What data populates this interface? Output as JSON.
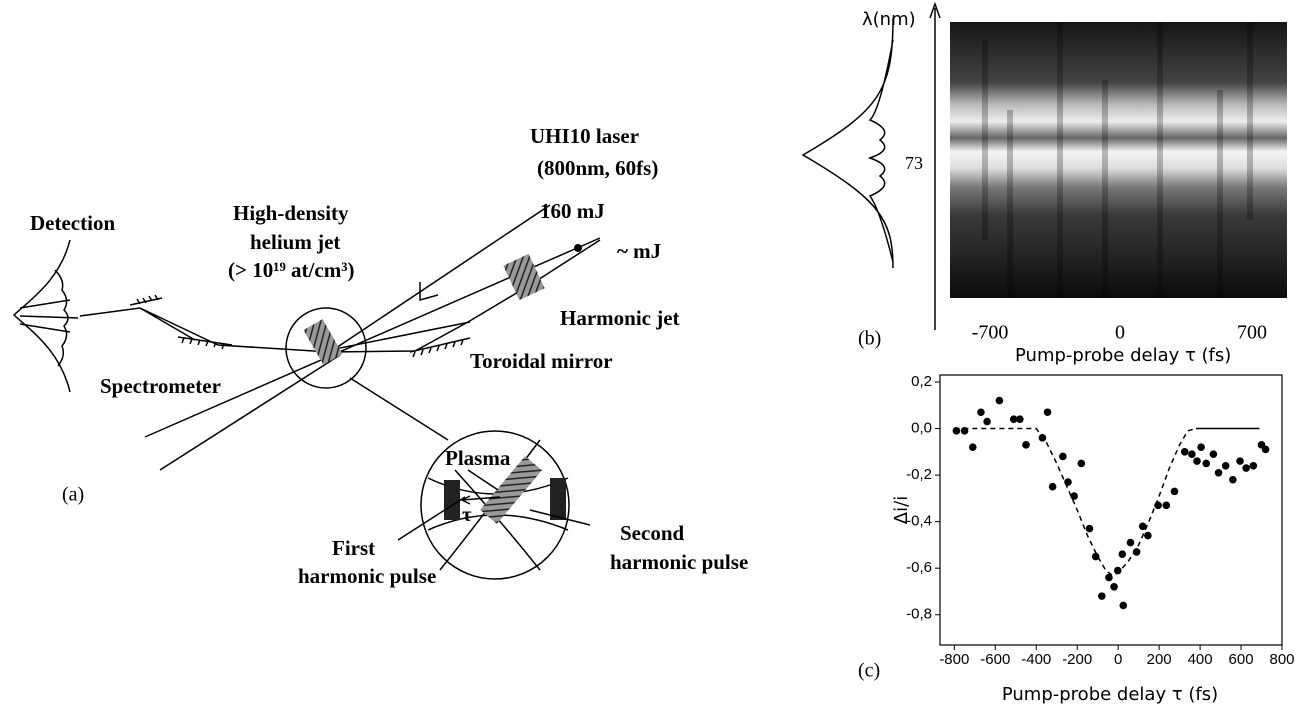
{
  "panel_a": {
    "label": "(a)",
    "laser": "UHI10 laser",
    "laser_params": "(800nm, 60fs)",
    "pump_energy": "160 mJ",
    "probe_energy": "~ mJ",
    "detection": "Detection",
    "jet_line1": "High-density",
    "jet_line2": "helium jet",
    "jet_line3": "(> 10¹⁹ at/cm³)",
    "harmonic_jet": "Harmonic jet",
    "toroidal_mirror": "Toroidal mirror",
    "spectrometer": "Spectrometer",
    "plasma": "Plasma",
    "tau": "τ",
    "first_line1": "First",
    "first_line2": "harmonic pulse",
    "second_line1": "Second",
    "second_line2": "harmonic pulse"
  },
  "panel_b": {
    "label": "(b)",
    "y_axis_label": "λ(nm)",
    "y_tick": "73",
    "x_ticks": [
      "-700",
      "0",
      "700"
    ],
    "x_axis_label": "Pump-probe delay τ (fs)"
  },
  "chart_data": {
    "type": "scatter",
    "label": "(c)",
    "x_label": "Pump-probe delay τ (fs)",
    "y_label": "Δi/i",
    "color": "#000000",
    "x": [
      -790,
      -750,
      -710,
      -670,
      -640,
      -580,
      -510,
      -480,
      -450,
      -370,
      -345,
      -320,
      -270,
      -245,
      -215,
      -180,
      -140,
      -110,
      -80,
      -45,
      -20,
      -2,
      20,
      25,
      60,
      90,
      120,
      145,
      195,
      235,
      275,
      325,
      360,
      385,
      405,
      430,
      465,
      490,
      525,
      560,
      595,
      625,
      660,
      700,
      720
    ],
    "values": [
      -0.01,
      -0.01,
      -0.08,
      0.07,
      0.03,
      0.12,
      0.04,
      0.04,
      -0.07,
      -0.04,
      0.07,
      -0.25,
      -0.12,
      -0.23,
      -0.29,
      -0.15,
      -0.43,
      -0.55,
      -0.72,
      -0.64,
      -0.68,
      -0.61,
      -0.54,
      -0.76,
      -0.49,
      -0.53,
      -0.42,
      -0.46,
      -0.33,
      -0.33,
      -0.27,
      -0.1,
      -0.11,
      -0.14,
      -0.08,
      -0.15,
      -0.11,
      -0.19,
      -0.16,
      -0.22,
      -0.14,
      -0.17,
      -0.16,
      -0.07,
      -0.09
    ],
    "fit": {
      "style": "dashed",
      "x": [
        -800,
        -400,
        -350,
        -300,
        -250,
        -200,
        -150,
        -100,
        -60,
        -30,
        0,
        50,
        100,
        150,
        200,
        250,
        300,
        340,
        380
      ],
      "values": [
        0,
        0,
        -0.06,
        -0.15,
        -0.25,
        -0.35,
        -0.46,
        -0.55,
        -0.61,
        -0.63,
        -0.62,
        -0.57,
        -0.5,
        -0.4,
        -0.29,
        -0.17,
        -0.07,
        -0.01,
        0
      ]
    },
    "baseline": {
      "style": "solid",
      "x": [
        380,
        690
      ],
      "values": [
        0,
        0
      ]
    },
    "xlim": [
      -870,
      800
    ],
    "ylim": [
      -0.93,
      0.23
    ],
    "xticks": [
      -800,
      -600,
      -400,
      -200,
      0,
      200,
      400,
      600,
      800
    ],
    "yticks": [
      {
        "value": 0.2,
        "label": "0,2"
      },
      {
        "value": 0.0,
        "label": "0,0"
      },
      {
        "value": -0.2,
        "label": "-0,2"
      },
      {
        "value": -0.4,
        "label": "-0,4"
      },
      {
        "value": -0.6,
        "label": "-0,6"
      },
      {
        "value": -0.8,
        "label": "-0,8"
      }
    ]
  }
}
